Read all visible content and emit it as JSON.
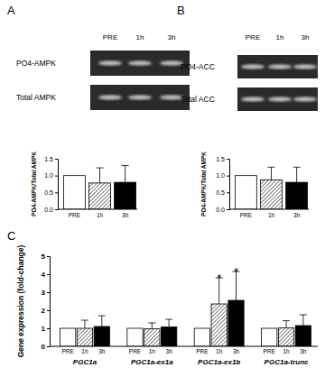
{
  "chart_data": [
    {
      "type": "bar",
      "panel_label": "A",
      "blot": {
        "columns": [
          "PRE",
          "1h",
          "3h"
        ],
        "rows": [
          "PO4-AMPK",
          "Total AMPK"
        ]
      },
      "y_label": "PO4-AMPK/Total AMPK",
      "categories": [
        "PRE",
        "1h",
        "3h"
      ],
      "values": [
        1.0,
        0.78,
        0.8
      ],
      "errors": [
        null,
        0.45,
        0.5
      ],
      "colors": [
        "#ffffff",
        "#ffffff",
        "#000000"
      ],
      "ylim": [
        0,
        1.5
      ],
      "yticks": [
        {
          "value": 0,
          "label": "0.0"
        },
        {
          "value": 0.5,
          "label": "0.5"
        },
        {
          "value": 1,
          "label": "1.0"
        },
        {
          "value": 1.5,
          "label": "1.5"
        }
      ]
    },
    {
      "type": "bar",
      "panel_label": "B",
      "blot": {
        "columns": [
          "PRE",
          "1h",
          "3h"
        ],
        "rows": [
          "PO4-ACC",
          "Total ACC"
        ]
      },
      "y_label": "PO4-AMPK/Total AMPK",
      "categories": [
        "PRE",
        "1h",
        "3h"
      ],
      "values": [
        1.0,
        0.87,
        0.8
      ],
      "errors": [
        null,
        0.38,
        0.45
      ],
      "colors": [
        "#ffffff",
        "#ffffff",
        "#000000"
      ],
      "ylim": [
        0,
        1.5
      ],
      "yticks": [
        {
          "value": 0,
          "label": "0.0"
        },
        {
          "value": 0.5,
          "label": "0.5"
        },
        {
          "value": 1,
          "label": "1.0"
        },
        {
          "value": 1.5,
          "label": "1.5"
        }
      ]
    },
    {
      "type": "bar",
      "panel_label": "C",
      "y_label": "Gene expression (fold-change)",
      "categories": [
        "PGC1a",
        "PGC1a-ex1a",
        "PGC1a-ex1b",
        "PGC1a-trunc"
      ],
      "series": [
        {
          "name": "PRE",
          "color": "#ffffff",
          "values": [
            1,
            1,
            1,
            1
          ],
          "errors": [
            null,
            null,
            null,
            null
          ]
        },
        {
          "name": "1h",
          "color": "#ffffff",
          "values": [
            1.0,
            0.97,
            2.35,
            1.02
          ],
          "errors": [
            0.45,
            0.33,
            1.45,
            0.4
          ],
          "annotations": [
            null,
            null,
            "*",
            null
          ]
        },
        {
          "name": "3h",
          "color": "#000000",
          "values": [
            1.1,
            1.08,
            2.55,
            1.15
          ],
          "errors": [
            0.6,
            0.42,
            1.6,
            0.6
          ],
          "annotations": [
            null,
            null,
            "*",
            null
          ]
        }
      ],
      "ylim": [
        0,
        5
      ],
      "yticks": [
        0,
        1,
        2,
        3,
        4,
        5
      ]
    }
  ]
}
